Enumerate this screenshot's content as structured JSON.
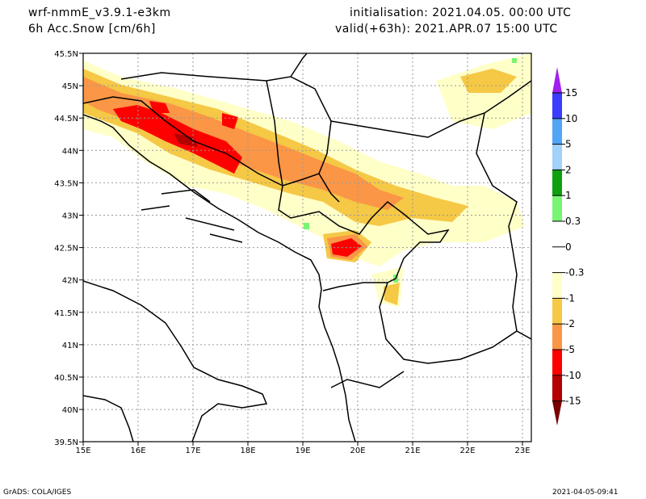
{
  "header": {
    "model": "wrf-nmmE_v3.9.1-e3km",
    "field": "6h Acc.Snow [cm/6h]",
    "init": "initialisation: 2021.04.05.  00:00 UTC",
    "valid": "valid(+63h): 2021.APR.07 15:00 UTC"
  },
  "map": {
    "lat_labels": [
      "45.5N",
      "45N",
      "44.5N",
      "44N",
      "43.5N",
      "43N",
      "42.5N",
      "42N",
      "41.5N",
      "41N",
      "40.5N",
      "40N",
      "39.5N"
    ],
    "lat_values": [
      45.5,
      45,
      44.5,
      44,
      43.5,
      43,
      42.5,
      42,
      41.5,
      41,
      40.5,
      40,
      39.5
    ],
    "lon_labels": [
      "15E",
      "16E",
      "17E",
      "18E",
      "19E",
      "20E",
      "21E",
      "22E",
      "23E"
    ],
    "lon_values": [
      15,
      16,
      17,
      18,
      19,
      20,
      21,
      22,
      23
    ]
  },
  "colorbar": {
    "labels": [
      "15",
      "10",
      "5",
      "2",
      "1",
      "0.3",
      "0",
      "-0.3",
      "-1",
      "-2",
      "-5",
      "-10",
      "-15"
    ],
    "colors": [
      "#3c3cff",
      "#50a5f5",
      "#a0d2fa",
      "#0fa00f",
      "#78f573",
      "#ffffff",
      "#ffffff",
      "#ffffc8",
      "#f5c846",
      "#fa9646",
      "#ff0000",
      "#b40000"
    ],
    "top_tip": "#a020f0",
    "bottom_tip": "#780000"
  },
  "footer": {
    "left": "GrADS: COLA/IGES",
    "right": "2021-04-05-09:41"
  }
}
